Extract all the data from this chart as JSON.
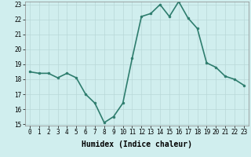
{
  "x": [
    0,
    1,
    2,
    3,
    4,
    5,
    6,
    7,
    8,
    9,
    10,
    11,
    12,
    13,
    14,
    15,
    16,
    17,
    18,
    19,
    20,
    21,
    22,
    23
  ],
  "y": [
    18.5,
    18.4,
    18.4,
    18.1,
    18.4,
    18.1,
    17.0,
    16.4,
    15.1,
    15.5,
    16.4,
    19.4,
    22.2,
    22.4,
    23.0,
    22.2,
    23.2,
    22.1,
    21.4,
    19.1,
    18.8,
    18.2,
    18.0,
    17.6
  ],
  "line_color": "#2e7d6e",
  "marker": "o",
  "marker_size": 2,
  "bg_color": "#d0eeee",
  "grid_color": "#b8d8d8",
  "xlabel": "Humidex (Indice chaleur)",
  "ylim": [
    15,
    23
  ],
  "xlim": [
    -0.5,
    23.5
  ],
  "yticks": [
    15,
    16,
    17,
    18,
    19,
    20,
    21,
    22,
    23
  ],
  "xticks": [
    0,
    1,
    2,
    3,
    4,
    5,
    6,
    7,
    8,
    9,
    10,
    11,
    12,
    13,
    14,
    15,
    16,
    17,
    18,
    19,
    20,
    21,
    22,
    23
  ],
  "tick_fontsize": 5.5,
  "xlabel_fontsize": 7,
  "line_width": 1.2
}
